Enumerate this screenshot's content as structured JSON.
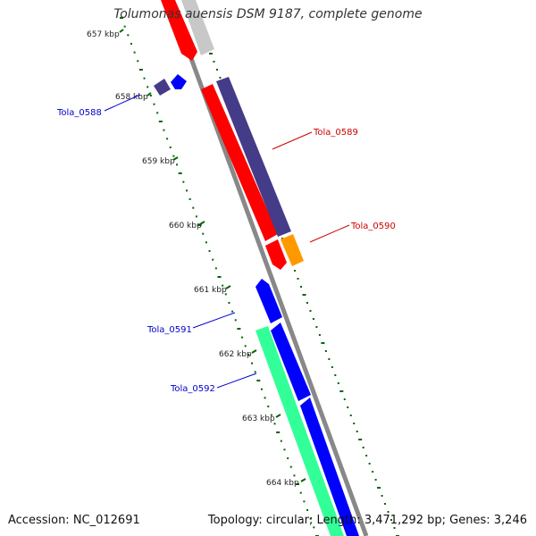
{
  "header": {
    "title": "Tolumonas auensis DSM 9187, complete genome"
  },
  "footer": {
    "accession": "Accession: NC_012691",
    "summary": "Topology: circular; Length: 3,471,292 bp; Genes: 3,246"
  },
  "ticks": [
    "657 kbp",
    "658 kbp",
    "659 kbp",
    "660 kbp",
    "661 kbp",
    "662 kbp",
    "663 kbp",
    "664 kbp"
  ],
  "gene_labels": [
    {
      "name": "Tola_0588",
      "color": "#0000cc"
    },
    {
      "name": "Tola_0589",
      "color": "#cc0000"
    },
    {
      "name": "Tola_0590",
      "color": "#cc0000"
    },
    {
      "name": "Tola_0591",
      "color": "#0000cc"
    },
    {
      "name": "Tola_0592",
      "color": "#0000cc"
    }
  ],
  "colors": {
    "backbone": "#888888",
    "tick": "#006600",
    "red_gene": "#ff0000",
    "blue_gene": "#0000ff",
    "purple_gene": "#443c88",
    "orange_gene": "#ff9900",
    "cyan_gene": "#33ff99",
    "grey_gene": "#c8c8c8"
  }
}
